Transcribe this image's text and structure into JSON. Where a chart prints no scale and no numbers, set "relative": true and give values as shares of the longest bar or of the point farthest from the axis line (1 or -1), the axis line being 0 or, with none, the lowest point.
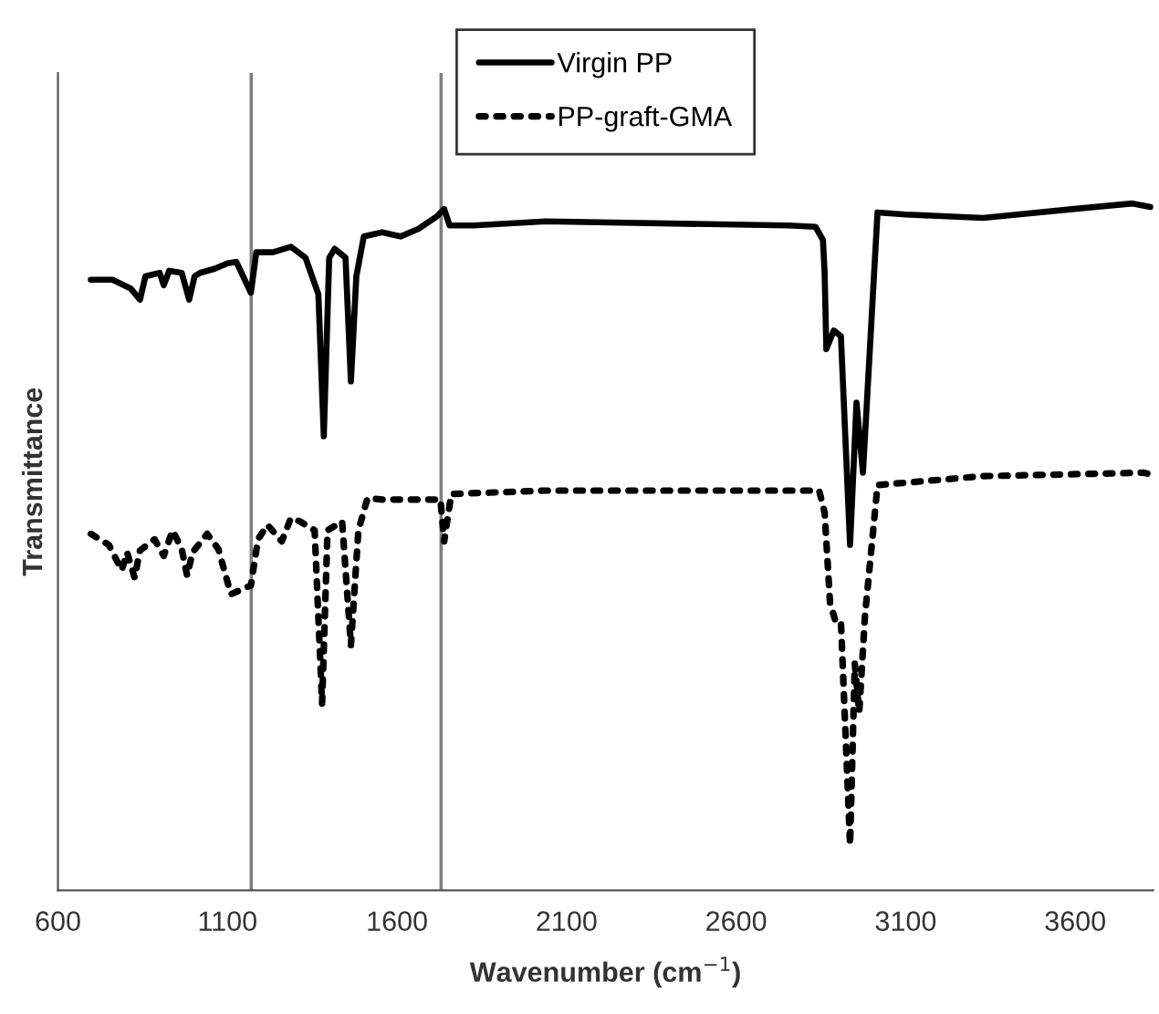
{
  "chart_data": {
    "type": "line",
    "xlabel": "Wavenumber (cm$^{−1}$)",
    "ylabel": "Transmittance",
    "relative": true,
    "xlim": [
      600,
      3830
    ],
    "xticks": [
      600,
      1100,
      1600,
      2100,
      2600,
      3100,
      3600
    ],
    "grid": false,
    "legend": "top",
    "marker": "none",
    "ref_lines": [
      {
        "axis": "x",
        "value": 1170,
        "color": "#7f7f7f"
      },
      {
        "axis": "x",
        "value": 1730,
        "color": "#7f7f7f"
      }
    ],
    "series": [
      {
        "name": "Virgin PP",
        "color": "#000000",
        "line_style": "solid",
        "x": [
          697,
          761,
          815,
          842,
          858,
          900,
          912,
          928,
          965,
          987,
          1003,
          1019,
          1062,
          1100,
          1126,
          1169,
          1185,
          1234,
          1287,
          1330,
          1368,
          1384,
          1400,
          1416,
          1448,
          1464,
          1480,
          1502,
          1556,
          1610,
          1663,
          1717,
          1739,
          1755,
          1825,
          2039,
          2754,
          2834,
          2856,
          2861,
          2866,
          2888,
          2909,
          2936,
          2955,
          2974,
          3017,
          3100,
          3328,
          3597,
          3769,
          3822
        ],
        "values": [
          0.889,
          0.889,
          0.876,
          0.86,
          0.894,
          0.899,
          0.881,
          0.902,
          0.899,
          0.86,
          0.894,
          0.899,
          0.905,
          0.913,
          0.915,
          0.87,
          0.929,
          0.929,
          0.937,
          0.921,
          0.868,
          0.661,
          0.921,
          0.934,
          0.921,
          0.741,
          0.894,
          0.952,
          0.958,
          0.952,
          0.963,
          0.981,
          0.992,
          0.968,
          0.968,
          0.974,
          0.968,
          0.966,
          0.947,
          0.899,
          0.788,
          0.815,
          0.807,
          0.503,
          0.71,
          0.608,
          0.987,
          0.984,
          0.979,
          0.992,
          1.0,
          0.995
        ]
      },
      {
        "name": "PP-graft-GMA",
        "color": "#000000",
        "line_style": "dotted",
        "x": [
          697,
          750,
          788,
          804,
          826,
          842,
          885,
          912,
          938,
          965,
          981,
          997,
          1040,
          1073,
          1110,
          1169,
          1190,
          1218,
          1260,
          1287,
          1314,
          1357,
          1379,
          1395,
          1438,
          1464,
          1486,
          1513,
          1556,
          1663,
          1728,
          1739,
          1760,
          2039,
          2500,
          2845,
          2861,
          2877,
          2893,
          2909,
          2936,
          2950,
          2963,
          2980,
          3017,
          3328,
          3800,
          3822
        ],
        "values": [
          0.519,
          0.503,
          0.466,
          0.492,
          0.455,
          0.495,
          0.511,
          0.487,
          0.524,
          0.497,
          0.458,
          0.492,
          0.519,
          0.497,
          0.431,
          0.444,
          0.511,
          0.532,
          0.508,
          0.542,
          0.537,
          0.524,
          0.272,
          0.524,
          0.537,
          0.357,
          0.524,
          0.571,
          0.569,
          0.569,
          0.569,
          0.508,
          0.577,
          0.582,
          0.582,
          0.582,
          0.55,
          0.418,
          0.392,
          0.392,
          0.066,
          0.33,
          0.259,
          0.4,
          0.59,
          0.603,
          0.608,
          0.606
        ]
      }
    ]
  }
}
